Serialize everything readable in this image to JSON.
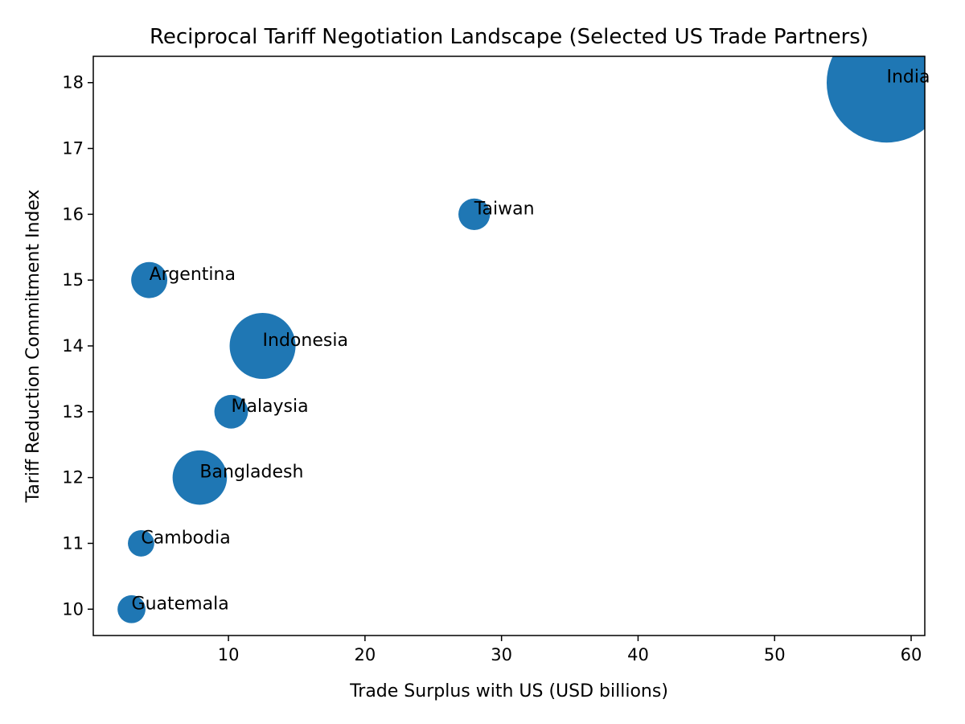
{
  "chart_data": {
    "type": "scatter",
    "title": "Reciprocal Tariff Negotiation Landscape (Selected US Trade Partners)",
    "xlabel": "Trade Surplus with US (USD billions)",
    "ylabel": "Tariff Reduction Commitment Index",
    "xlim": [
      0.1,
      61
    ],
    "ylim": [
      9.6,
      18.4
    ],
    "xticks": [
      10,
      20,
      30,
      40,
      50,
      60
    ],
    "yticks": [
      10,
      11,
      12,
      13,
      14,
      15,
      16,
      17,
      18
    ],
    "color": "#1f77b4",
    "grid": false,
    "legend": "none",
    "points": [
      {
        "label": "Guatemala",
        "x": 2.9,
        "y": 10,
        "size": 18
      },
      {
        "label": "Cambodia",
        "x": 3.6,
        "y": 11,
        "size": 16
      },
      {
        "label": "Bangladesh",
        "x": 7.9,
        "y": 12,
        "size": 68
      },
      {
        "label": "Malaysia",
        "x": 10.2,
        "y": 13,
        "size": 26
      },
      {
        "label": "Indonesia",
        "x": 12.5,
        "y": 14,
        "size": 100
      },
      {
        "label": "Argentina",
        "x": 4.2,
        "y": 15,
        "size": 30
      },
      {
        "label": "Taiwan",
        "x": 28,
        "y": 16,
        "size": 23
      },
      {
        "label": "India",
        "x": 58.2,
        "y": 18,
        "size": 330
      }
    ]
  }
}
